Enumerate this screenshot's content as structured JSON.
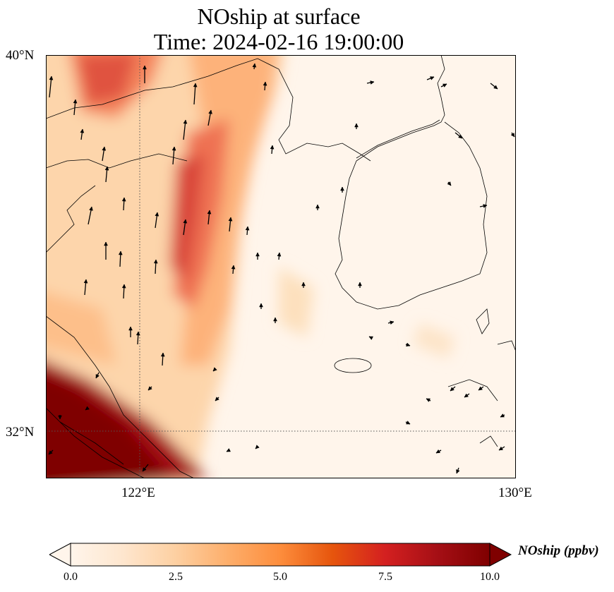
{
  "title": {
    "line1": "NOship at surface",
    "line2": "Time: 2024-02-16 19:00:00"
  },
  "map": {
    "lat_labels": [
      "40°N",
      "32°N"
    ],
    "lon_labels": [
      "122°E",
      "130°E"
    ],
    "extent": {
      "lon_min": 120,
      "lon_max": 130,
      "lat_min": 31,
      "lat_max": 40
    },
    "gridlines": {
      "lons": [
        122
      ],
      "lats": [
        32
      ]
    }
  },
  "colorbar": {
    "label": "NOship (ppbv)",
    "ticks": [
      "0.0",
      "2.5",
      "5.0",
      "7.5",
      "10.0"
    ],
    "range": [
      0,
      10
    ],
    "extend": "both",
    "colormap": [
      "#fff5eb",
      "#fee6ce",
      "#fdd0a2",
      "#fdae6b",
      "#fd8d3c",
      "#e6550d",
      "#d42020",
      "#a50f15",
      "#7f0000"
    ]
  },
  "colors": {
    "coastline": "#000000",
    "gridline": "#555555",
    "arrow": "#000000"
  }
}
